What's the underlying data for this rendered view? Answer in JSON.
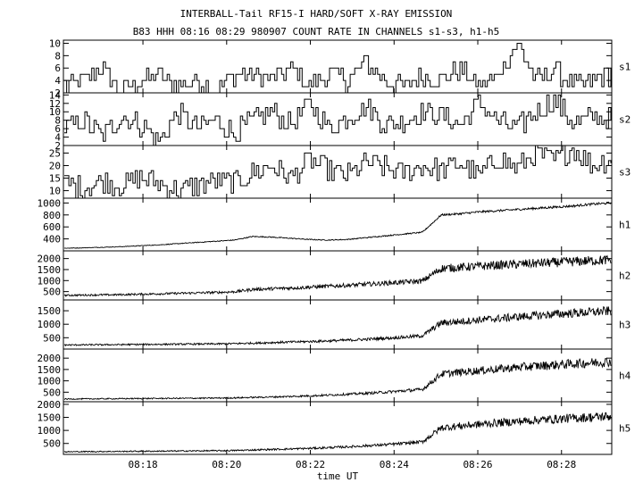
{
  "title": "INTERBALL-Tail RF15-I HARD/SOFT X-RAY EMISSION",
  "subtitle": "B83 HHH 08:16 08:29 980907  COUNT RATE IN CHANNELS s1-s3, h1-h5",
  "chart_data": {
    "type": "line",
    "title": "INTERBALL-Tail RF15-I HARD/SOFT X-RAY EMISSION",
    "subtitle": "B83 HHH 08:16 08:29 980907  COUNT RATE IN CHANNELS s1-s3, h1-h5",
    "xlabel": "time UT",
    "x_ticks": [
      "08:18",
      "08:20",
      "08:22",
      "08:24",
      "08:26",
      "08:28"
    ],
    "x_tick_minutes": [
      18,
      20,
      22,
      24,
      26,
      28
    ],
    "xlim_minutes": [
      16.1,
      29.2
    ],
    "panels": [
      {
        "name": "s1",
        "ylim": [
          2,
          10.5
        ],
        "yticks": [
          2,
          4,
          6,
          8,
          10
        ],
        "x_start": 16.1,
        "x_end": 29.2,
        "start_values": [
          3,
          4,
          6,
          2,
          4,
          5,
          3,
          4,
          2,
          5
        ],
        "mid_values": [
          5,
          4,
          6,
          3,
          5,
          4,
          7,
          4,
          3,
          5
        ],
        "end_values": [
          4,
          6,
          3,
          5,
          10,
          4,
          6,
          3,
          4,
          5
        ],
        "typical_range": [
          2,
          8
        ],
        "max_value": 10
      },
      {
        "name": "s2",
        "ylim": [
          2,
          14.5
        ],
        "yticks": [
          2,
          4,
          6,
          8,
          10,
          12,
          14
        ],
        "x_start": 16.1,
        "x_end": 29.2,
        "start_values": [
          6,
          8,
          4,
          9,
          7,
          3,
          10,
          6,
          8,
          5
        ],
        "mid_values": [
          8,
          10,
          7,
          12,
          6,
          9,
          11,
          7,
          8,
          10
        ],
        "end_values": [
          9,
          7,
          12,
          8,
          6,
          10,
          13,
          7,
          9,
          8
        ],
        "typical_range": [
          3,
          13
        ],
        "max_value": 14
      },
      {
        "name": "s3",
        "ylim": [
          7,
          28
        ],
        "yticks": [
          10,
          15,
          20,
          25
        ],
        "x_start": 16.1,
        "x_end": 29.2,
        "start_values": [
          13,
          11,
          14,
          12,
          15,
          13,
          10,
          12,
          14,
          13
        ],
        "mid_values": [
          17,
          20,
          15,
          22,
          18,
          16,
          21,
          19,
          17,
          20
        ],
        "end_values": [
          18,
          21,
          16,
          23,
          19,
          25,
          22,
          27,
          20,
          23
        ],
        "typical_range": [
          9,
          26
        ],
        "max_value": 28
      },
      {
        "name": "h1",
        "ylim": [
          200,
          1080
        ],
        "yticks": [
          400,
          600,
          800,
          1000
        ],
        "x_start": 16.1,
        "x_end": 29.2,
        "start_values": [
          245,
          250,
          260,
          270,
          285,
          300,
          320,
          340,
          360,
          380
        ],
        "mid_values": [
          440,
          430,
          410,
          390,
          380,
          390,
          420,
          450,
          480,
          510
        ],
        "end_values": [
          800,
          820,
          850,
          870,
          890,
          910,
          930,
          950,
          980,
          1000
        ],
        "typical_range": [
          245,
          1000
        ],
        "max_value": 1000
      },
      {
        "name": "h2",
        "ylim": [
          120,
          2350
        ],
        "yticks": [
          500,
          1000,
          1500,
          2000
        ],
        "x_start": 16.1,
        "x_end": 29.2,
        "start_values": [
          330,
          340,
          350,
          360,
          380,
          400,
          420,
          440,
          460,
          490
        ],
        "mid_values": [
          600,
          630,
          660,
          700,
          740,
          780,
          830,
          880,
          930,
          980
        ],
        "end_values": [
          1550,
          1600,
          1650,
          1700,
          1740,
          1780,
          1820,
          1860,
          1900,
          1940
        ],
        "typical_range": [
          330,
          1940
        ],
        "max_value": 2050
      },
      {
        "name": "h3",
        "ylim": [
          80,
          1900
        ],
        "yticks": [
          500,
          1000,
          1500
        ],
        "x_start": 16.1,
        "x_end": 29.2,
        "start_values": [
          230,
          235,
          240,
          245,
          250,
          255,
          260,
          265,
          270,
          280
        ],
        "mid_values": [
          300,
          320,
          340,
          360,
          380,
          410,
          440,
          480,
          520,
          570
        ],
        "end_values": [
          1050,
          1100,
          1160,
          1210,
          1270,
          1320,
          1370,
          1410,
          1450,
          1490
        ],
        "typical_range": [
          230,
          1490
        ],
        "max_value": 1650
      },
      {
        "name": "h4",
        "ylim": [
          80,
          2400
        ],
        "yticks": [
          500,
          1000,
          1500,
          2000
        ],
        "x_start": 16.1,
        "x_end": 29.2,
        "start_values": [
          200,
          205,
          210,
          215,
          220,
          225,
          230,
          235,
          240,
          250
        ],
        "mid_values": [
          270,
          290,
          310,
          340,
          370,
          410,
          450,
          500,
          560,
          620
        ],
        "end_values": [
          1300,
          1380,
          1450,
          1520,
          1590,
          1650,
          1700,
          1750,
          1800,
          1850
        ],
        "typical_range": [
          200,
          1850
        ],
        "max_value": 2000
      },
      {
        "name": "h5",
        "ylim": [
          80,
          2100
        ],
        "yticks": [
          500,
          1000,
          1500,
          2000
        ],
        "x_start": 16.1,
        "x_end": 29.2,
        "start_values": [
          180,
          185,
          190,
          195,
          200,
          205,
          210,
          215,
          220,
          230
        ],
        "mid_values": [
          250,
          270,
          290,
          310,
          340,
          370,
          410,
          450,
          500,
          560
        ],
        "end_values": [
          1100,
          1170,
          1230,
          1290,
          1340,
          1390,
          1430,
          1470,
          1510,
          1540
        ],
        "typical_range": [
          180,
          1540
        ],
        "max_value": 1650
      }
    ]
  }
}
